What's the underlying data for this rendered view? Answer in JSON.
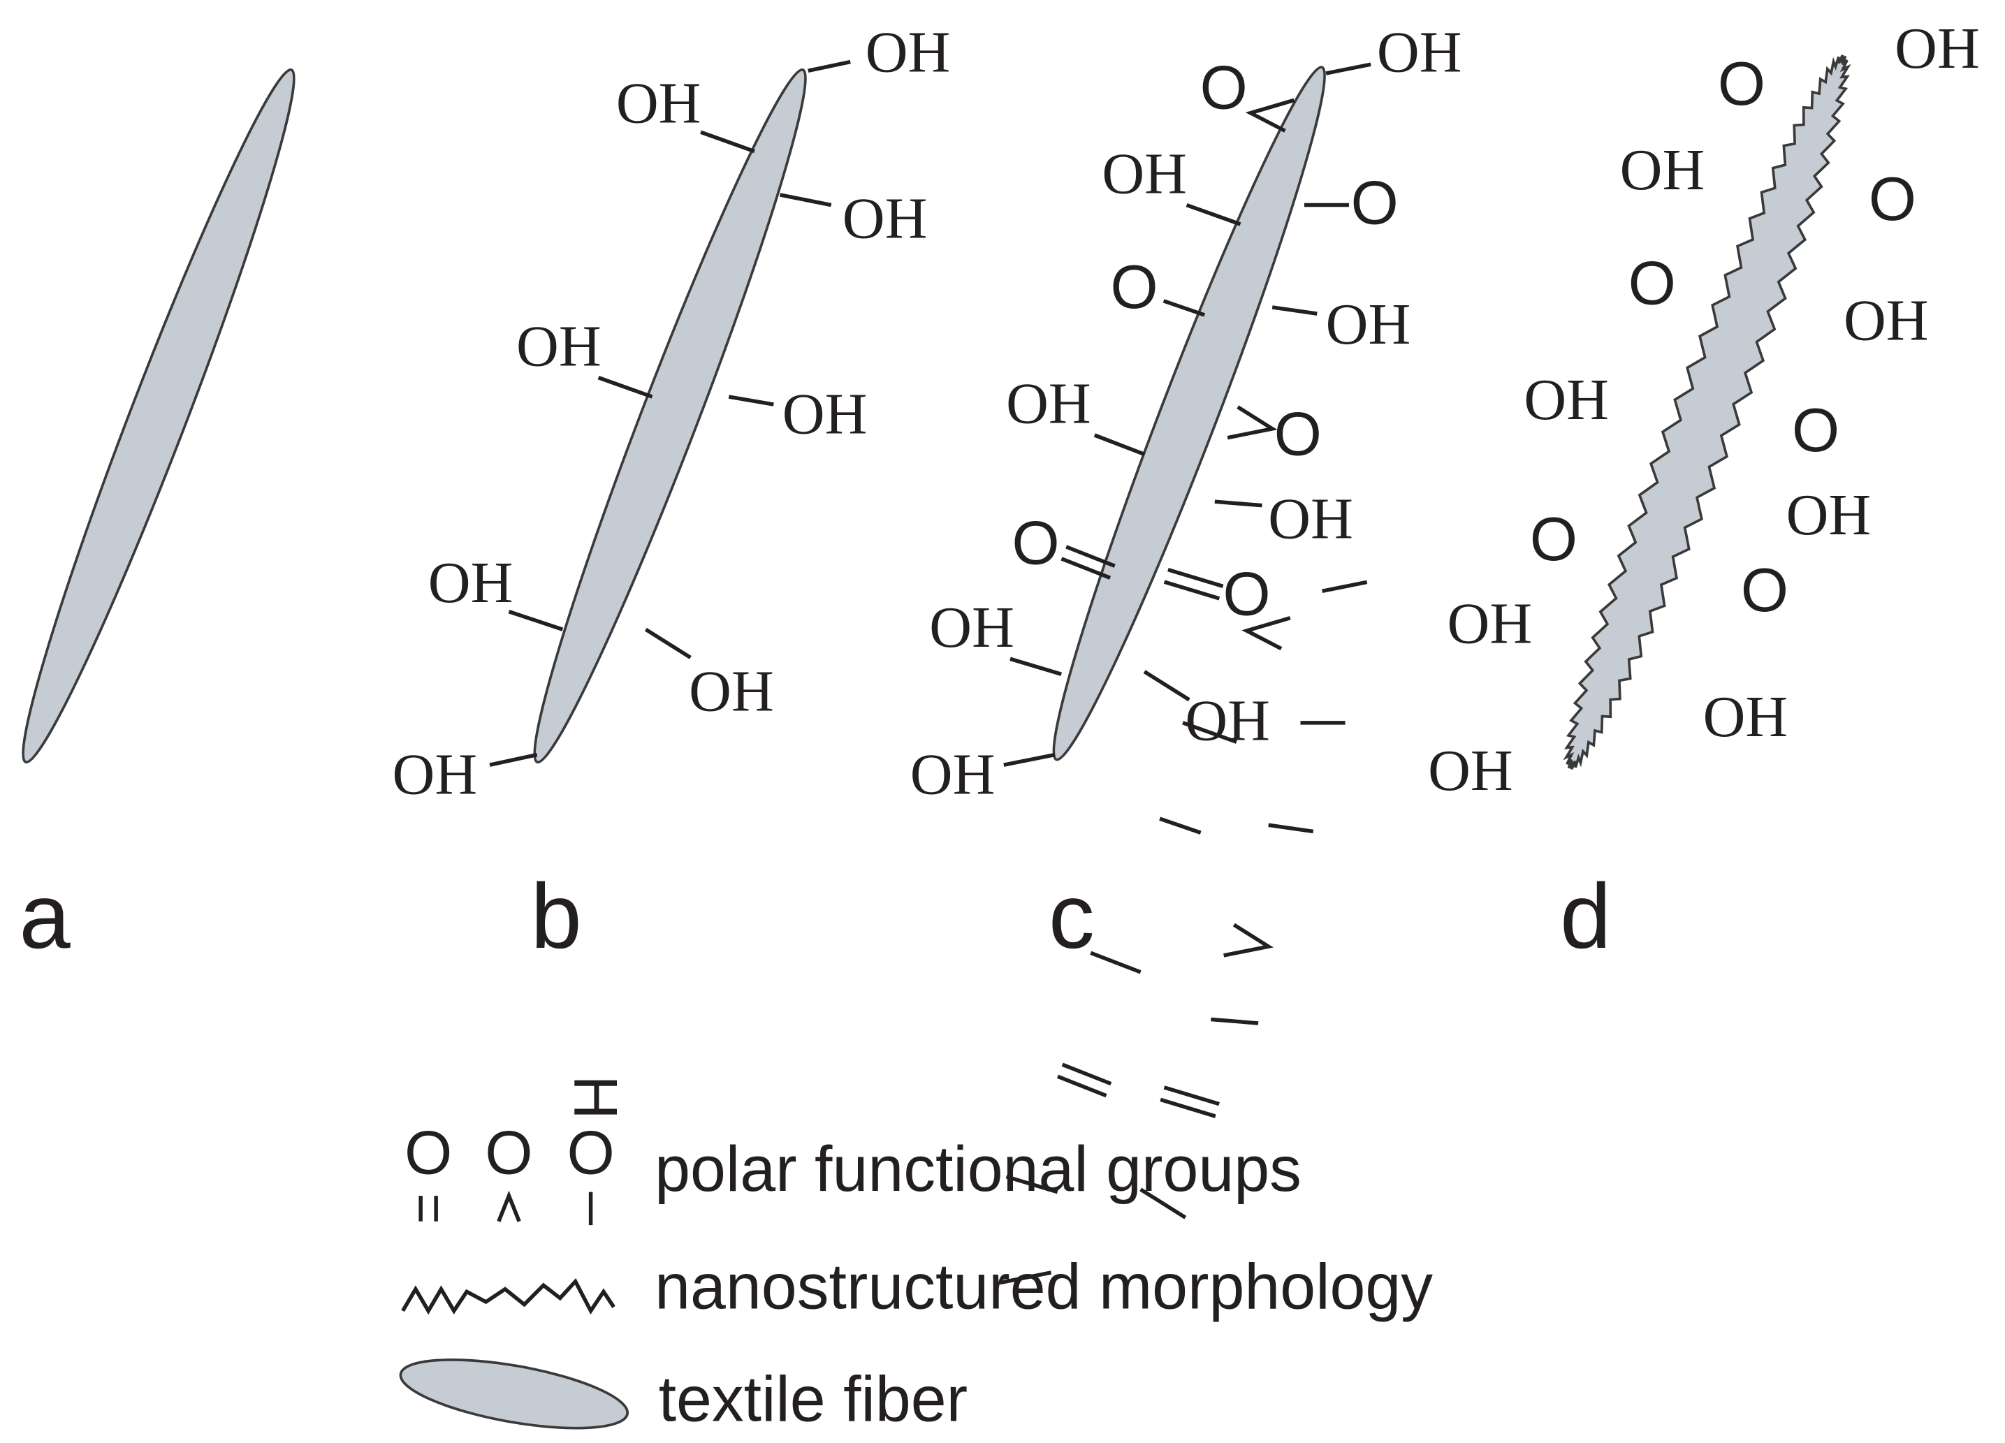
{
  "panels": [
    {
      "label": "a",
      "groups": []
    },
    {
      "label": "b",
      "groups": [
        "OH",
        "OH",
        "OH",
        "OH",
        "OH",
        "OH",
        "OH",
        "OH"
      ]
    },
    {
      "label": "c",
      "groups": [
        "OH",
        "O",
        "OH",
        "O",
        "O",
        "OH",
        "OH",
        "O",
        "OH",
        "O",
        "O",
        "OH",
        "OH",
        "OH"
      ]
    },
    {
      "label": "d",
      "groups": [
        "OH",
        "O",
        "OH",
        "O",
        "O",
        "OH",
        "OH",
        "O",
        "OH",
        "O",
        "O",
        "OH",
        "OH",
        "OH"
      ]
    }
  ],
  "legend": {
    "symbols": [
      "O",
      "O",
      "O",
      "H"
    ],
    "items": [
      "polar functional groups",
      "nanostructured morphology",
      "textile fiber"
    ]
  }
}
